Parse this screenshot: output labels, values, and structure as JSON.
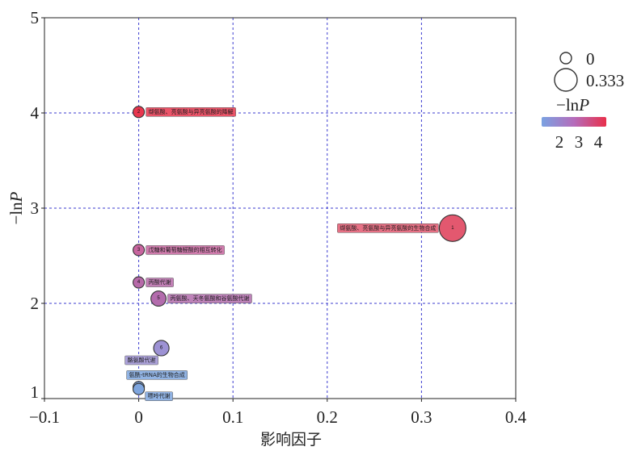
{
  "chart_data": {
    "type": "scatter",
    "xlabel": "影响因子",
    "ylabel": {
      "text": "−ln",
      "italic": "P"
    },
    "xlim": [
      -0.1,
      0.4
    ],
    "ylim": [
      1,
      5
    ],
    "x_ticks": [
      -0.1,
      0,
      0.1,
      0.2,
      0.3,
      0.4
    ],
    "x_tick_labels": [
      "−0.1",
      "0",
      "0.1",
      "0.2",
      "0.3",
      "0.4"
    ],
    "y_ticks": [
      1,
      2,
      3,
      4,
      5
    ],
    "y_tick_labels": [
      "1",
      "2",
      "3",
      "4",
      "5"
    ],
    "grid": true,
    "grid_color": "#3b3bcf",
    "points": [
      {
        "id": "1",
        "x": 0.333,
        "y": 2.79,
        "label": "缬氨酸、亮氨酸与异亮氨酸的生物合成",
        "color": "#e3586f"
      },
      {
        "id": "2",
        "x": 0.0,
        "y": 4.01,
        "label": "缬氨酸、亮氨酸与异亮氨酸的降解",
        "color": "#e8364e"
      },
      {
        "id": "3",
        "x": 0.0,
        "y": 2.56,
        "label": "戊糖和葡萄糖醛酸的相互转化",
        "color": "#c8659f"
      },
      {
        "id": "4",
        "x": 0.0,
        "y": 2.22,
        "label": "丙酸代谢",
        "color": "#b76aa9"
      },
      {
        "id": "5",
        "x": 0.021,
        "y": 2.05,
        "label": "丙氨酸、天冬氨酸和谷氨酸代谢",
        "color": "#b36cad"
      },
      {
        "id": "6",
        "x": 0.024,
        "y": 1.53,
        "label": "酪氨酸代谢",
        "color": "#9d92d4"
      },
      {
        "x": 0.0,
        "y": 1.12,
        "label": "氨酰-tRNA的生物合成",
        "color": "#7ea5de"
      },
      {
        "x": 0.0,
        "y": 1.1,
        "label": "嘌呤代谢",
        "color": "#7ea5de"
      }
    ],
    "size_legend": {
      "labels": [
        "0",
        "0.333"
      ]
    },
    "color_legend": {
      "title": {
        "text": "−ln",
        "italic": "P"
      },
      "tick_labels": [
        "2",
        "3",
        "4"
      ],
      "colors": [
        "#7aa2e2",
        "#b56cbb",
        "#e8304b"
      ]
    },
    "legend_position": "top-right"
  }
}
